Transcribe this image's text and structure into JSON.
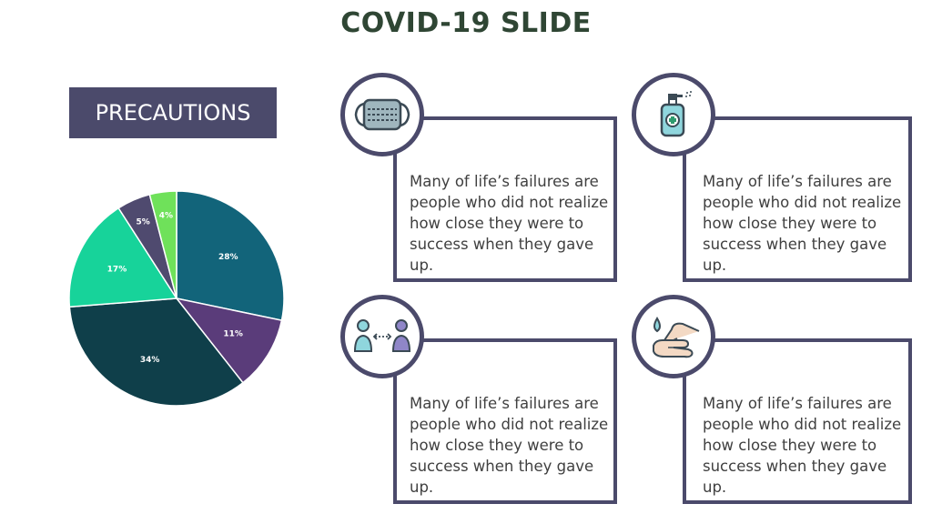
{
  "slide": {
    "title": "COVID-19 SLIDE",
    "precautions_label": "PRECAUTIONS"
  },
  "cards": [
    {
      "icon": "face-mask-icon",
      "text": "Many of life’s failures are people who did not realize how close they were to success when they gave up."
    },
    {
      "icon": "hand-sanitizer-icon",
      "text": "Many of life’s failures are people who did not realize how close they were to success when they gave up."
    },
    {
      "icon": "social-distancing-icon",
      "text": "Many of life’s failures are people who did not realize how close they were to success when they gave up."
    },
    {
      "icon": "hand-washing-icon",
      "text": "Many of life’s failures are people who did not realize how close they were to success when they gave up."
    }
  ],
  "chart_data": {
    "type": "pie",
    "slices": [
      {
        "label": "28%",
        "value": 28,
        "color": "#12647a"
      },
      {
        "label": "11%",
        "value": 11,
        "color": "#5a3c7a"
      },
      {
        "label": "34%",
        "value": 34,
        "color": "#0f3f4a"
      },
      {
        "label": "17%",
        "value": 17,
        "color": "#17d39a"
      },
      {
        "label": "5%",
        "value": 5,
        "color": "#4f4a6f"
      },
      {
        "label": "4%",
        "value": 4,
        "color": "#6fe15a"
      }
    ]
  }
}
